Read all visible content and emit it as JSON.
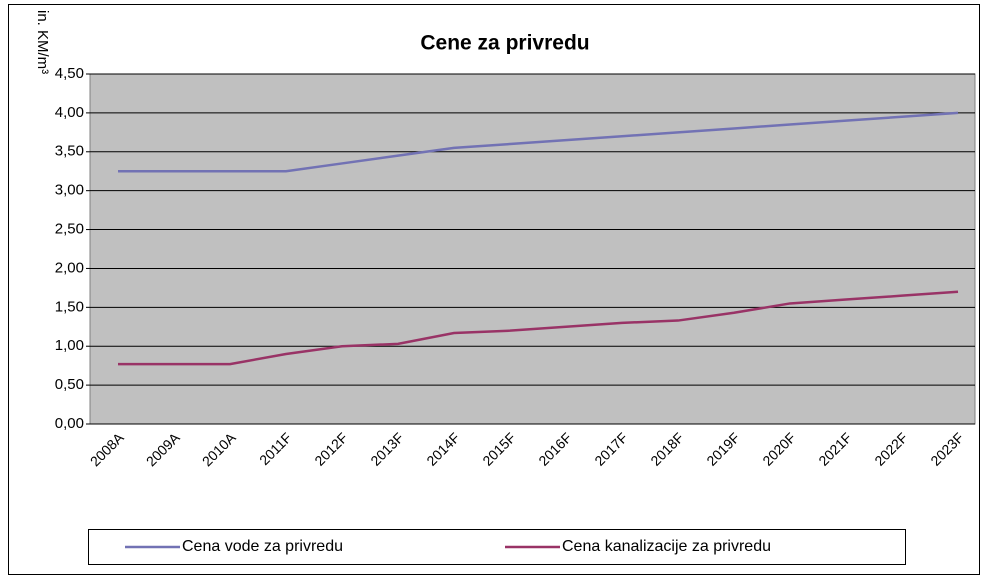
{
  "chart_data": {
    "type": "line",
    "title": "Cene za privredu",
    "y_label": "in. KM/m³",
    "categories": [
      "2008A",
      "2009A",
      "2010A",
      "2011F",
      "2012F",
      "2013F",
      "2014F",
      "2015F",
      "2016F",
      "2017F",
      "2018F",
      "2019F",
      "2020F",
      "2021F",
      "2022F",
      "2023F"
    ],
    "series": [
      {
        "name": "Cena vode za privredu",
        "color": "#7272b4",
        "values": [
          3.25,
          3.25,
          3.25,
          3.25,
          3.35,
          3.45,
          3.55,
          3.6,
          3.65,
          3.7,
          3.75,
          3.8,
          3.85,
          3.9,
          3.95,
          4.0
        ]
      },
      {
        "name": "Cena kanalizacije za privredu",
        "color": "#993366",
        "values": [
          0.77,
          0.77,
          0.77,
          0.9,
          1.0,
          1.03,
          1.17,
          1.2,
          1.25,
          1.3,
          1.33,
          1.43,
          1.55,
          1.6,
          1.65,
          1.7
        ]
      }
    ],
    "ylim": [
      0,
      4.5
    ],
    "yticks": [
      {
        "value": 0,
        "label": "0,00"
      },
      {
        "value": 0.5,
        "label": "0,50"
      },
      {
        "value": 1,
        "label": "1,00"
      },
      {
        "value": 1.5,
        "label": "1,50"
      },
      {
        "value": 2,
        "label": "2,00"
      },
      {
        "value": 2.5,
        "label": "2,50"
      },
      {
        "value": 3,
        "label": "3,00"
      },
      {
        "value": 3.5,
        "label": "3,50"
      },
      {
        "value": 4,
        "label": "4,00"
      },
      {
        "value": 4.5,
        "label": "4,50"
      }
    ],
    "grid": true,
    "plot_background": "#c0c0c0",
    "legend": "bottom"
  }
}
